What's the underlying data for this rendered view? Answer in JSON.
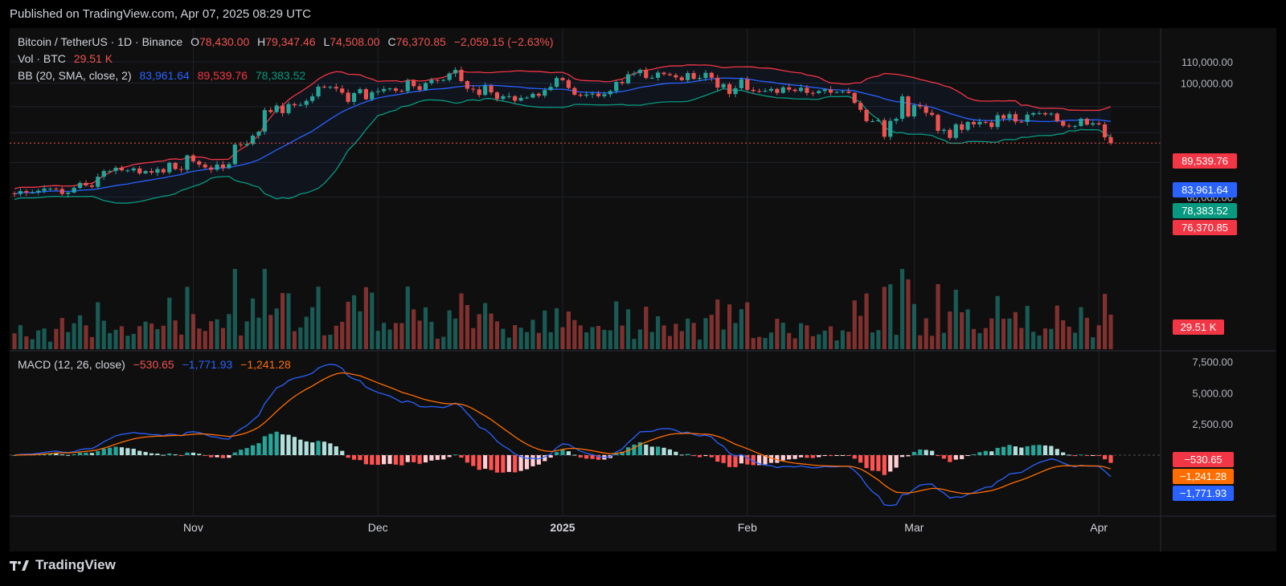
{
  "published": "Published on TradingView.com, Apr 07, 2025 08:29 UTC",
  "brand": "TradingView",
  "colors": {
    "up": "#26a69a",
    "down": "#ef5350",
    "bbUpper": "#f23645",
    "bbBasis": "#2962ff",
    "bbLower": "#089981",
    "macd": "#2962ff",
    "signal": "#ff6d00"
  },
  "legend": {
    "symbol": "Bitcoin / TetherUS · 1D · Binance",
    "o_label": "O",
    "o": "78,430.00",
    "h_label": "H",
    "h": "79,347.46",
    "l_label": "L",
    "l": "74,508.00",
    "c_label": "C",
    "c": "76,370.85",
    "change": "−2,059.15 (−2.63%)",
    "vol_label": "Vol · BTC",
    "vol": "29.51 K",
    "bb_label": "BB (20, SMA, close, 2)",
    "bb_basis": "83,961.64",
    "bb_upper": "89,539.76",
    "bb_lower": "78,383.52",
    "macd_label": "MACD (12, 26, close)",
    "macd_hist": "−530.65",
    "macd_line": "−1,771.93",
    "macd_signal": "−1,241.28"
  },
  "price_badges": {
    "upper": "89,539.76",
    "basis": "83,961.64",
    "lower": "78,383.52",
    "last": "76,370.85",
    "vol": "29.51 K"
  },
  "macd_badges": {
    "hist": "−530.65",
    "signal": "−1,241.28",
    "macd": "−1,771.93"
  },
  "chart_data": {
    "type": "candlestick",
    "price_ticks": [
      "110,000.00",
      "100,000.00",
      "70,000.00",
      "60,000.00"
    ],
    "price_tick_values": [
      110000,
      100000,
      70000,
      60000
    ],
    "macd_ticks": [
      "7,500.00",
      "5,000.00",
      "2,500.00"
    ],
    "macd_tick_values": [
      7500,
      5000,
      2500
    ],
    "x_labels": [
      "Nov",
      "Dec",
      "2025",
      "Feb",
      "Mar",
      "Apr"
    ],
    "x_label_day_index": [
      30,
      61,
      92,
      123,
      151,
      182
    ],
    "first_date": "2024-10-02",
    "close": [
      60800,
      61600,
      61200,
      61200,
      61700,
      62300,
      62300,
      62200,
      60800,
      61200,
      62500,
      63900,
      63200,
      62800,
      65700,
      67400,
      67400,
      68400,
      67600,
      67600,
      68200,
      66700,
      67400,
      66900,
      68000,
      67000,
      69900,
      68000,
      67800,
      72300,
      70400,
      69400,
      68500,
      67800,
      69400,
      68300,
      69500,
      75900,
      75700,
      76100,
      79000,
      80400,
      88600,
      87800,
      90400,
      87400,
      91000,
      90500,
      90700,
      92300,
      94200,
      98400,
      98100,
      98300,
      97600,
      95800,
      91900,
      95600,
      97300,
      93000,
      96000,
      96400,
      97400,
      97600,
      96600,
      96400,
      101100,
      98600,
      97000,
      100000,
      101400,
      101100,
      101400,
      104400,
      106100,
      100900,
      97500,
      97200,
      94800,
      98800,
      95900,
      93100,
      94300,
      94300,
      92400,
      93600,
      93700,
      95300,
      94500,
      96900,
      98300,
      102300,
      101300,
      97800,
      94900,
      94500,
      95000,
      95400,
      94300,
      95100,
      96500,
      100500,
      99900,
      104000,
      104500,
      106100,
      102300,
      102400,
      104800,
      104100,
      103600,
      102600,
      101300,
      104600,
      101900,
      102300,
      104700,
      102400,
      98000,
      99500,
      95200,
      97700,
      101700,
      97000,
      96500,
      96400,
      96600,
      97400,
      95700,
      98100,
      97100,
      96500,
      97900,
      95700,
      95600,
      96500,
      97200,
      95800,
      96100,
      96300,
      95700,
      91500,
      88700,
      84300,
      84300,
      84700,
      78600,
      84400,
      85200,
      94200,
      86100,
      90600,
      90000,
      87500,
      86700,
      80700,
      81100,
      78200,
      83100,
      81100,
      84000,
      83100,
      84000,
      83800,
      82100,
      86600,
      85300,
      87000,
      84100,
      84000,
      86800,
      87400,
      87400,
      86900,
      87200,
      84300,
      82600,
      82400,
      82500,
      85200,
      83000,
      83500,
      83100,
      78400,
      76400
    ],
    "bb_basis_last": 83961.64,
    "bb_upper_last": 89539.76,
    "bb_lower_last": 78383.52,
    "macd_hist_last": -530.65,
    "macd_line_last": -1771.93,
    "macd_signal_last": -1241.28
  }
}
